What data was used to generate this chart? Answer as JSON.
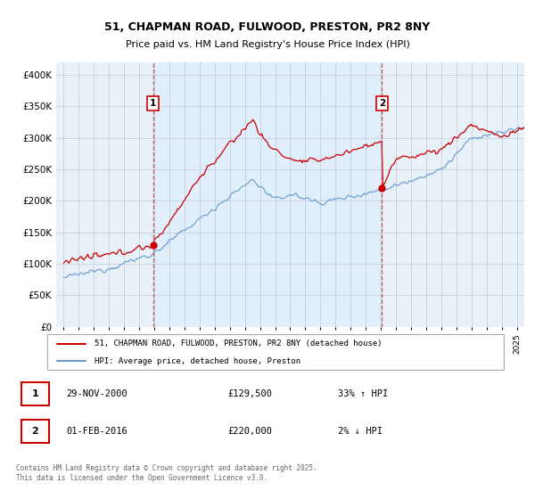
{
  "title_line1": "51, CHAPMAN ROAD, FULWOOD, PRESTON, PR2 8NY",
  "title_line2": "Price paid vs. HM Land Registry's House Price Index (HPI)",
  "ylim": [
    0,
    420000
  ],
  "yticks": [
    0,
    50000,
    100000,
    150000,
    200000,
    250000,
    300000,
    350000,
    400000
  ],
  "ytick_labels": [
    "£0",
    "£50K",
    "£100K",
    "£150K",
    "£200K",
    "£250K",
    "£300K",
    "£350K",
    "£400K"
  ],
  "xlim_start": 1994.5,
  "xlim_end": 2025.5,
  "sale1_date": 2000.91,
  "sale1_price": 129500,
  "sale2_date": 2016.08,
  "sale2_price": 220000,
  "sale1_date_str": "29-NOV-2000",
  "sale2_date_str": "01-FEB-2016",
  "sale1_hpi_pct": "33% ↑ HPI",
  "sale2_hpi_pct": "2% ↓ HPI",
  "legend_line1": "51, CHAPMAN ROAD, FULWOOD, PRESTON, PR2 8NY (detached house)",
  "legend_line2": "HPI: Average price, detached house, Preston",
  "footer": "Contains HM Land Registry data © Crown copyright and database right 2025.\nThis data is licensed under the Open Government Licence v3.0.",
  "line_color_red": "#cc0000",
  "line_color_blue": "#6699cc",
  "vline_color": "#cc4444",
  "fill_color": "#ddeeff",
  "background_color": "#e8f0f8",
  "grid_color": "#c0c8d8",
  "badge_edge_color": "#cc0000"
}
